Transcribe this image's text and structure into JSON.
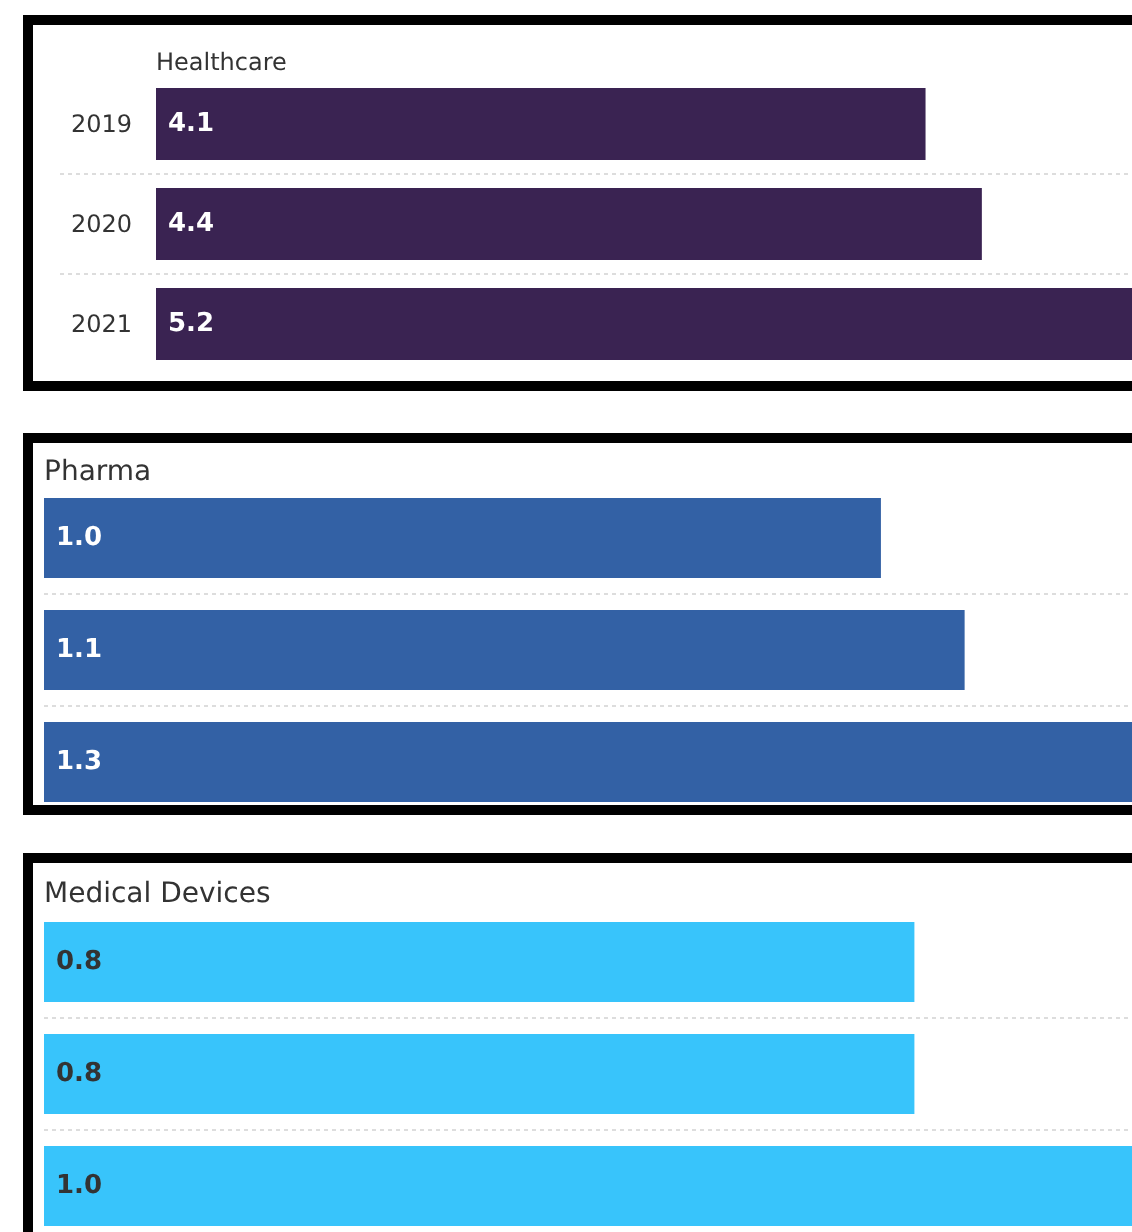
{
  "chart_data": [
    {
      "type": "bar",
      "orientation": "horizontal",
      "title": "Healthcare",
      "categories": [
        "2019",
        "2020",
        "2021"
      ],
      "series": [
        {
          "color": "#3a2352",
          "values": [
            4.1,
            4.4,
            5.2
          ],
          "value_labels": [
            "4.1",
            "4.4",
            "5.2"
          ]
        }
      ]
    },
    {
      "type": "bar",
      "orientation": "horizontal",
      "title": "Pharma",
      "categories": [
        null,
        null,
        null
      ],
      "series": [
        {
          "color": "#3361a5",
          "values": [
            1.0,
            1.1,
            1.3
          ],
          "value_labels": [
            "1.0",
            "1.1",
            "1.3"
          ]
        }
      ]
    },
    {
      "type": "bar",
      "orientation": "horizontal",
      "title": "Medical Devices",
      "categories": [
        null,
        null,
        null
      ],
      "series": [
        {
          "color": "#38c4fb",
          "values": [
            0.8,
            0.8,
            1.0
          ],
          "value_labels": [
            "0.8",
            "0.8",
            "1.0"
          ]
        }
      ]
    }
  ]
}
